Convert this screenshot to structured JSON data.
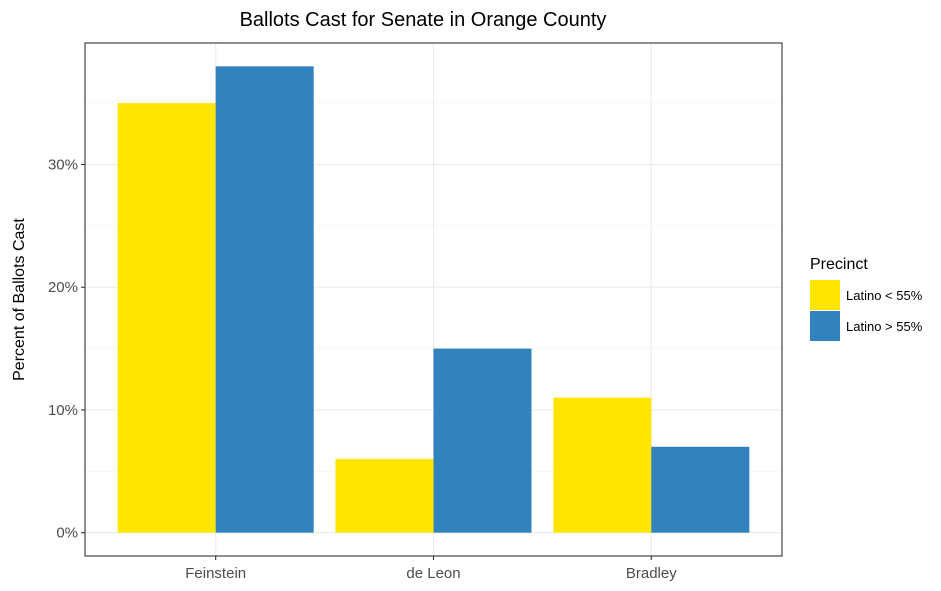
{
  "chart_data": {
    "type": "bar",
    "title": "Ballots Cast for Senate in Orange County",
    "xlabel": "",
    "ylabel": "Percent of Ballots Cast",
    "categories": [
      "Feinstein",
      "de Leon",
      "Bradley"
    ],
    "series": [
      {
        "name": "Latino < 55%",
        "color": "#FFE600",
        "values": [
          35,
          6,
          11
        ]
      },
      {
        "name": "Latino > 55%",
        "color": "#3182BD",
        "values": [
          38,
          15,
          7
        ]
      }
    ],
    "ylim": [
      -1.9,
      39.9
    ],
    "yticks": [
      0,
      10,
      20,
      30
    ],
    "ytick_labels": [
      "0%",
      "10%",
      "20%",
      "30%"
    ],
    "legend": {
      "title": "Precinct",
      "position": "right"
    },
    "grid": true
  }
}
